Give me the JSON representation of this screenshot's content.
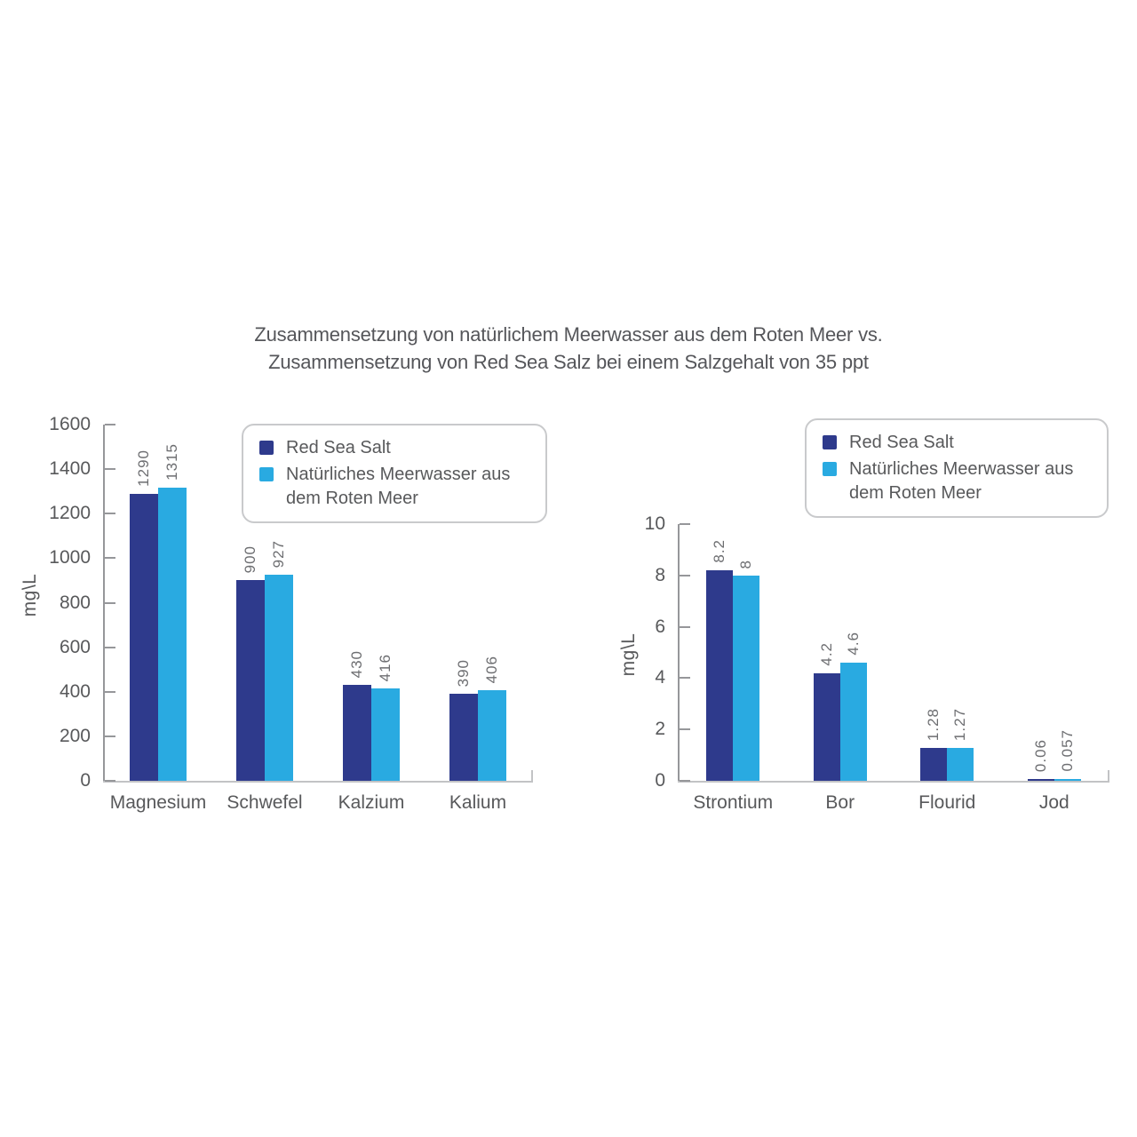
{
  "title": {
    "line1": "Zusammensetzung von natürlichem Meerwasser aus dem Roten Meer vs.",
    "line2": "Zusammensetzung von Red Sea Salz bei einem Salzgehalt von 35 ppt"
  },
  "legend": {
    "items": [
      {
        "label": "Red Sea Salt",
        "color": "#2e3a8c"
      },
      {
        "label": "Natürliches Meerwasser aus dem Roten Meer",
        "color": "#29aae1"
      }
    ]
  },
  "colors": {
    "series": [
      "#2e3a8c",
      "#29aae1"
    ],
    "text": "#58595b",
    "value_label": "#6d6e71",
    "axis_y": "#96979a",
    "axis_x": "#c2c3c5"
  },
  "chart_data": [
    {
      "type": "bar",
      "title": "",
      "ylabel": "mg\\L",
      "xlabel": "",
      "ylim": [
        0,
        1600
      ],
      "yticks": [
        0,
        200,
        400,
        600,
        800,
        1000,
        1200,
        1400,
        1600
      ],
      "grid": false,
      "legend_position": "top",
      "categories": [
        "Magnesium",
        "Schwefel",
        "Kalzium",
        "Kalium"
      ],
      "series": [
        {
          "name": "Red Sea Salt",
          "values": [
            1290,
            900,
            430,
            390
          ],
          "labels": [
            "1290",
            "900",
            "430",
            "390"
          ]
        },
        {
          "name": "Natürliches Meerwasser aus dem Roten Meer",
          "values": [
            1315,
            927,
            416,
            406
          ],
          "labels": [
            "1315",
            "927",
            "416",
            "406"
          ]
        }
      ]
    },
    {
      "type": "bar",
      "title": "",
      "ylabel": "mg\\L",
      "xlabel": "",
      "ylim": [
        0,
        10
      ],
      "yticks": [
        0,
        2,
        4,
        6,
        8,
        10
      ],
      "grid": false,
      "legend_position": "top",
      "categories": [
        "Strontium",
        "Bor",
        "Flourid",
        "Jod"
      ],
      "series": [
        {
          "name": "Red Sea Salt",
          "values": [
            8.2,
            4.2,
            1.28,
            0.06
          ],
          "labels": [
            "8.2",
            "4.2",
            "1.28",
            "0.06"
          ]
        },
        {
          "name": "Natürliches Meerwasser aus dem Roten Meer",
          "values": [
            8,
            4.6,
            1.27,
            0.057
          ],
          "labels": [
            "8",
            "4.6",
            "1.27",
            "0.057"
          ]
        }
      ]
    }
  ]
}
